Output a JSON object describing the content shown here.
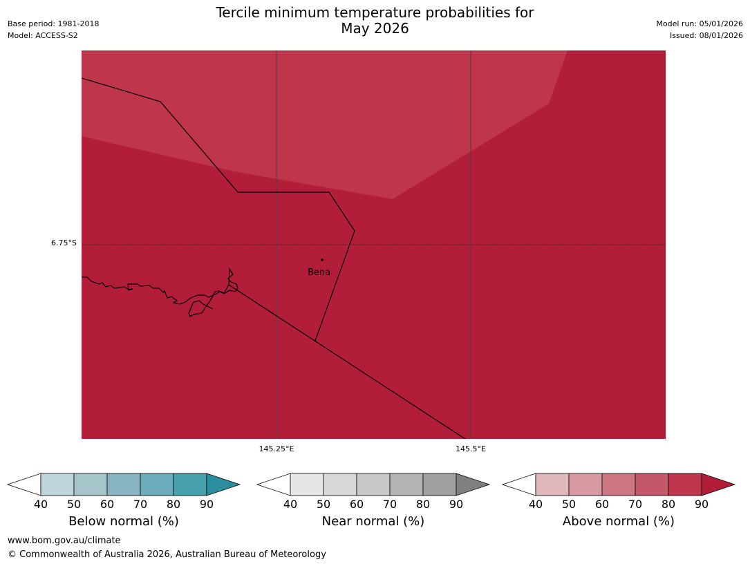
{
  "title_line1": "Tercile minimum temperature probabilities for",
  "title_line2": "May 2026",
  "base_period": "Base period: 1981-2018",
  "model": "Model: ACCESS-S2",
  "model_run": "Model run: 05/01/2026",
  "issued": "Issued: 08/01/2026",
  "map": {
    "lat_label": "6.75°S",
    "lon_labels": [
      "145.25°E",
      "145.5°E"
    ],
    "place": "Bena",
    "colors": {
      "high": "#b21e3a",
      "medium": "#be354c",
      "coast": "#000000"
    }
  },
  "colorbars": [
    {
      "name": "below",
      "label": "Below normal (%)",
      "ticks": [
        "40",
        "50",
        "60",
        "70",
        "80",
        "90"
      ],
      "colors": [
        "#ffffff",
        "#bdd5db",
        "#a6c5cb",
        "#88b5c1",
        "#6aacb9",
        "#46a0ae",
        "#2b8e9e"
      ]
    },
    {
      "name": "near",
      "label": "Near normal (%)",
      "ticks": [
        "40",
        "50",
        "60",
        "70",
        "80",
        "90"
      ],
      "colors": [
        "#ffffff",
        "#e6e6e6",
        "#d8d8d8",
        "#c8c8c8",
        "#b4b4b4",
        "#a0a0a0",
        "#808080"
      ]
    },
    {
      "name": "above",
      "label": "Above normal (%)",
      "ticks": [
        "40",
        "50",
        "60",
        "70",
        "80",
        "90"
      ],
      "colors": [
        "#ffffff",
        "#e0b6bd",
        "#d79aa2",
        "#cc7780",
        "#c45868",
        "#be354c",
        "#b21e3a"
      ]
    }
  ],
  "footer": {
    "url": "www.bom.gov.au/climate",
    "copyright": "© Commonwealth of Australia 2026, Australian Bureau of Meteorology"
  }
}
